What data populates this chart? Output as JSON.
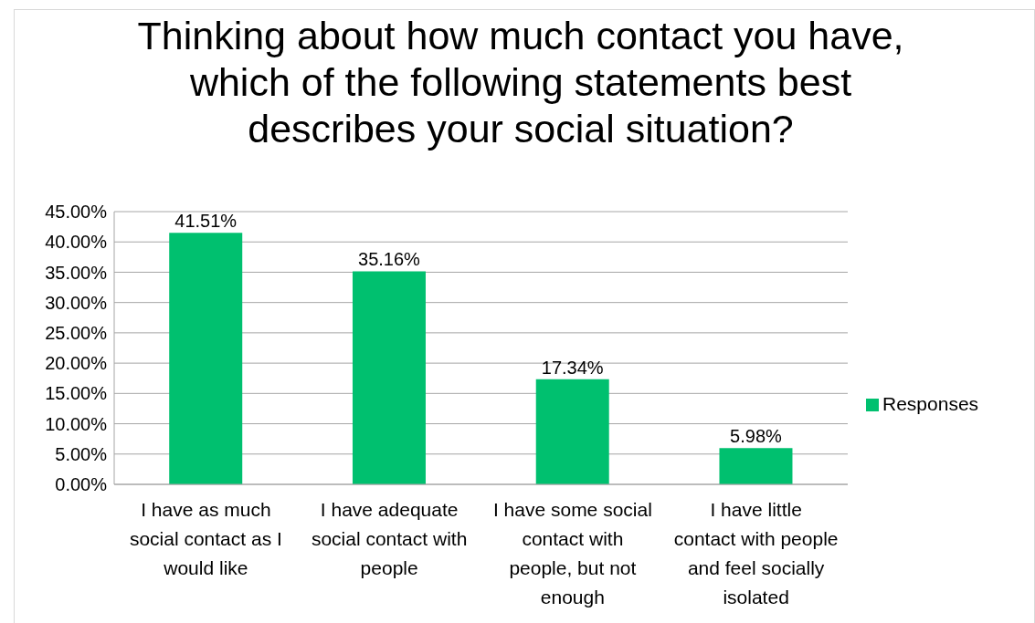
{
  "chart_data": {
    "type": "bar",
    "title": "Thinking about how much contact you have, which of the following statements best describes your social situation?",
    "categories": [
      "I have as much social contact as I would like",
      "I have adequate social contact with people",
      "I have some social contact with people, but not enough",
      "I have little contact with people and feel socially isolated"
    ],
    "series": [
      {
        "name": "Responses",
        "color": "#00c06f",
        "values": [
          41.51,
          35.16,
          17.34,
          5.98
        ],
        "value_labels": [
          "41.51%",
          "35.16%",
          "17.34%",
          "5.98%"
        ]
      }
    ],
    "ylim": [
      0,
      45
    ],
    "yticks": [
      {
        "value": 0,
        "label": "0.00%"
      },
      {
        "value": 5,
        "label": "5.00%"
      },
      {
        "value": 10,
        "label": "10.00%"
      },
      {
        "value": 15,
        "label": "15.00%"
      },
      {
        "value": 20,
        "label": "20.00%"
      },
      {
        "value": 25,
        "label": "25.00%"
      },
      {
        "value": 30,
        "label": "30.00%"
      },
      {
        "value": 35,
        "label": "35.00%"
      },
      {
        "value": 40,
        "label": "40.00%"
      },
      {
        "value": 45,
        "label": "45.00%"
      }
    ],
    "grid": "y",
    "legend": "right"
  }
}
